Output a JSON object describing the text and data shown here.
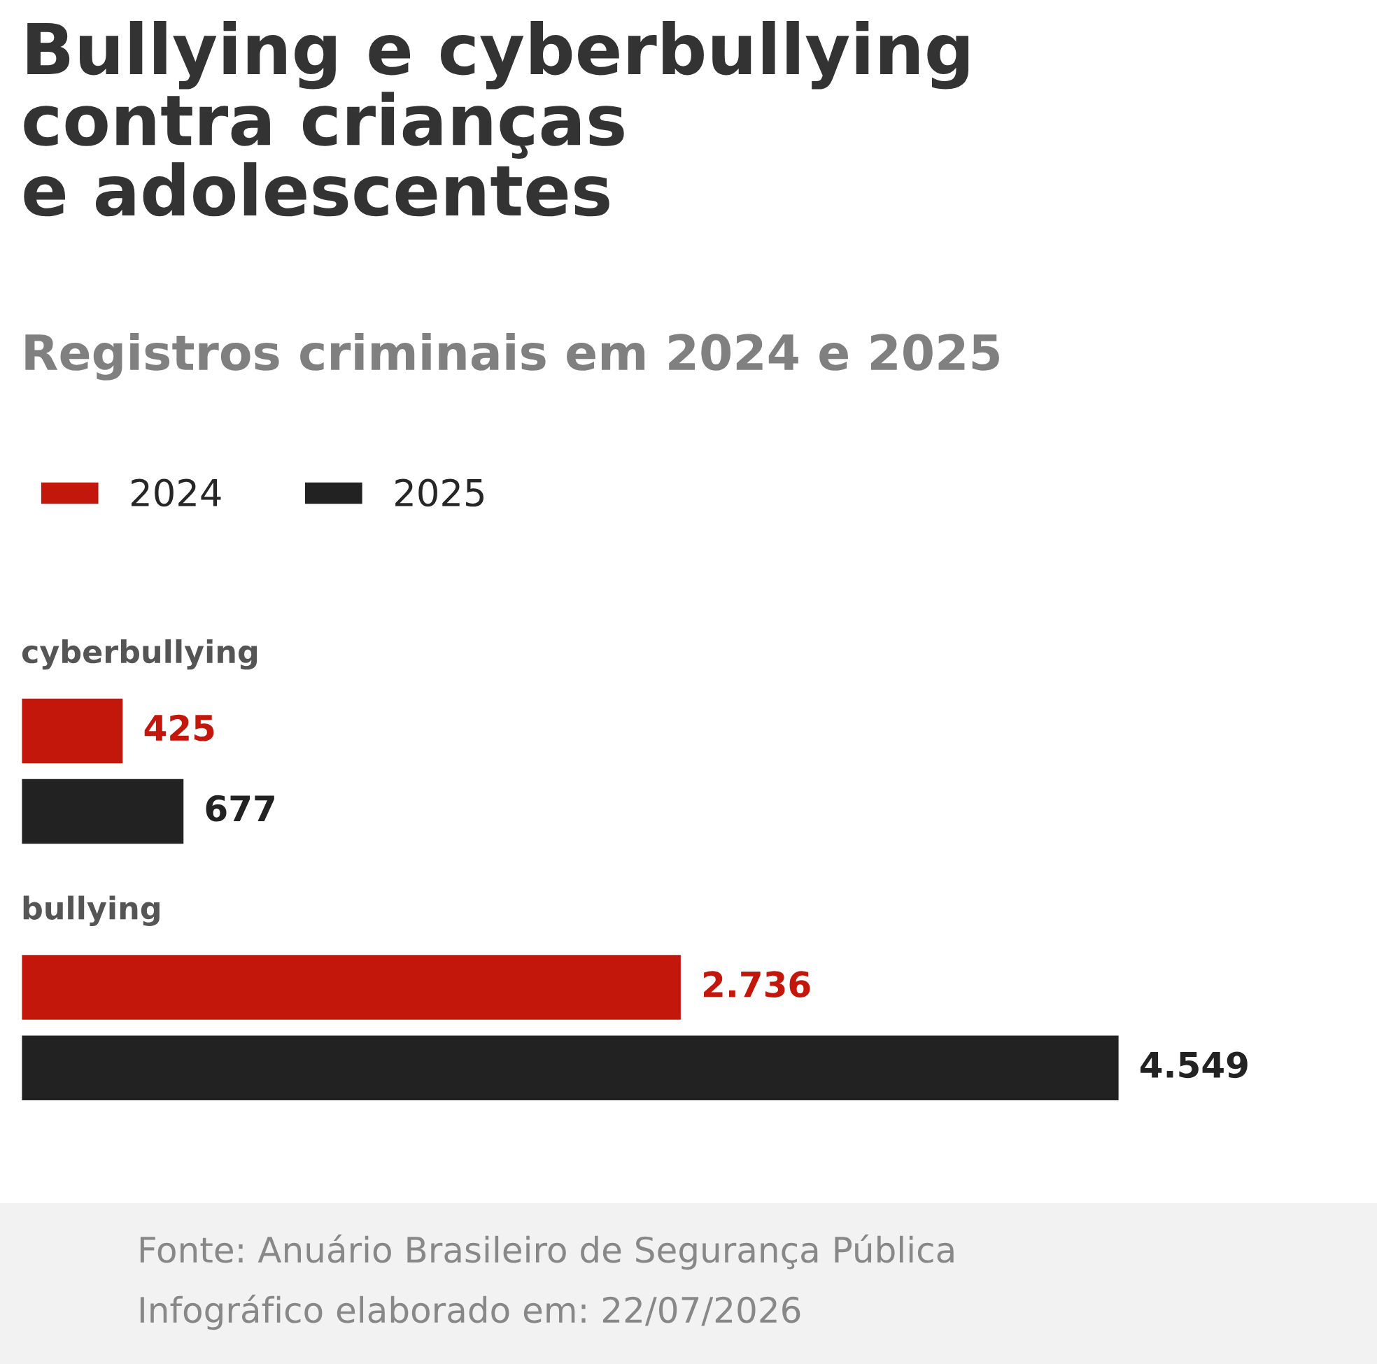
{
  "chart_data": {
    "type": "bar",
    "orientation": "horizontal",
    "title": "Bullying e cyberbullying\ncontra crianças\ne adolescentes",
    "subtitle": "Registros criminais em 2024 e 2025",
    "categories": [
      "cyberbullying",
      "bullying"
    ],
    "series": [
      {
        "name": "2024",
        "color": "#c4170c",
        "values": [
          425,
          2736
        ],
        "value_labels": [
          "425",
          "2.736"
        ]
      },
      {
        "name": "2025",
        "color": "#222222",
        "values": [
          677,
          4549
        ],
        "value_labels": [
          "677",
          "4.549"
        ]
      }
    ],
    "legend": "top left",
    "annotations": [
      "Fonte: Anuário Brasileiro de Segurança Pública",
      "Infográfico elaborado em: 22/07/2026"
    ]
  }
}
